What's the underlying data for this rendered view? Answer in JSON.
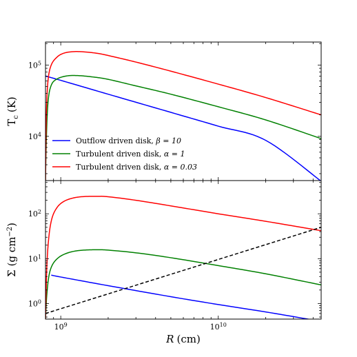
{
  "chart_data": [
    {
      "type": "line",
      "panel": "top",
      "xscale": "log",
      "yscale": "log",
      "xlim": [
        800000000,
        45000000000
      ],
      "ylim": [
        2400,
        210000
      ],
      "ylabel_main": "T",
      "ylabel_sub": "c",
      "ylabel_unit": "(K)",
      "yticks": [
        {
          "value": 100000,
          "base": "10",
          "exp": "5"
        },
        {
          "value": 10000,
          "base": "10",
          "exp": "4"
        }
      ],
      "legend_position": "lower-left",
      "series": [
        {
          "name": "Outflow driven disk, β = 10",
          "name_text": "Outflow driven disk, ",
          "name_param": "β = 10",
          "color": "#0000ff",
          "x": [
            800000000,
            1000000000,
            2000000000,
            5000000000,
            10000000000,
            20000000000,
            45000000000
          ],
          "y": [
            70000,
            61000,
            39000,
            21700,
            13900,
            8800,
            2350
          ]
        },
        {
          "name": "Turbulent driven disk, α = 1",
          "name_text": "Turbulent driven disk, ",
          "name_param": "α = 1",
          "color": "#008000",
          "x": [
            800000000,
            810000000,
            830000000,
            870000000,
            950000000,
            1100000000,
            1300000000,
            1600000000,
            2000000000,
            3000000000,
            5000000000,
            10000000000,
            20000000000,
            45000000000
          ],
          "y": [
            2400,
            9000,
            30000,
            52000,
            64000,
            70500,
            71000,
            68000,
            63000,
            51000,
            39000,
            26000,
            17000,
            9300
          ]
        },
        {
          "name": "Turbulent driven disk, α = 0.03",
          "name_text": "Turbulent driven disk, ",
          "name_param": "α = 0.03",
          "color": "#ff0000",
          "x": [
            800000000,
            810000000,
            830000000,
            870000000,
            950000000,
            1050000000,
            1200000000,
            1400000000,
            1700000000,
            2000000000,
            3000000000,
            5000000000,
            10000000000,
            20000000000,
            45000000000
          ],
          "y": [
            2400,
            20000,
            60000,
            100000,
            130000,
            147000,
            154000,
            153000,
            146000,
            136000,
            110000,
            82000,
            54000,
            35000,
            20000
          ]
        }
      ]
    },
    {
      "type": "line",
      "panel": "bottom",
      "xscale": "log",
      "yscale": "log",
      "xlim": [
        800000000,
        45000000000
      ],
      "ylim": [
        0.45,
        550
      ],
      "ylabel_main": "Σ",
      "ylabel_unit": "(g cm",
      "ylabel_exp": "−2",
      "ylabel_close": ")",
      "xlabel_main": "R",
      "xlabel_unit": "(cm)",
      "xticks": [
        {
          "value": 1000000000,
          "base": "10",
          "exp": "9"
        },
        {
          "value": 10000000000,
          "base": "10",
          "exp": "10"
        }
      ],
      "yticks": [
        {
          "value": 100,
          "base": "10",
          "exp": "2"
        },
        {
          "value": 10,
          "base": "10",
          "exp": "1"
        },
        {
          "value": 1,
          "base": "10",
          "exp": "0"
        }
      ],
      "series": [
        {
          "color": "#0000ff",
          "dash": "solid",
          "x": [
            870000000,
            1000000000,
            2000000000,
            5000000000,
            10000000000,
            20000000000,
            45000000000
          ],
          "y": [
            4.3,
            3.9,
            2.5,
            1.42,
            0.95,
            0.65,
            0.4
          ]
        },
        {
          "color": "#008000",
          "dash": "solid",
          "x": [
            800000000,
            815000000,
            840000000,
            880000000,
            950000000,
            1050000000,
            1200000000,
            1400000000,
            1700000000,
            2000000000,
            3000000000,
            5000000000,
            10000000000,
            20000000000,
            45000000000
          ],
          "y": [
            0.45,
            1.5,
            4.0,
            7.0,
            10.0,
            12.5,
            14.5,
            15.5,
            15.8,
            15.5,
            13.5,
            10.5,
            7.0,
            4.6,
            2.6
          ]
        },
        {
          "color": "#ff0000",
          "dash": "solid",
          "x": [
            800000000,
            815000000,
            840000000,
            880000000,
            950000000,
            1050000000,
            1200000000,
            1400000000,
            1700000000,
            2000000000,
            3000000000,
            5000000000,
            10000000000,
            20000000000,
            45000000000
          ],
          "y": [
            0.45,
            6,
            30,
            80,
            140,
            190,
            225,
            242,
            245,
            240,
            200,
            150,
            100,
            68,
            42
          ]
        },
        {
          "color": "#000000",
          "dash": "dashed",
          "x": [
            800000000,
            45000000000
          ],
          "y": [
            0.6,
            50
          ]
        }
      ]
    }
  ]
}
